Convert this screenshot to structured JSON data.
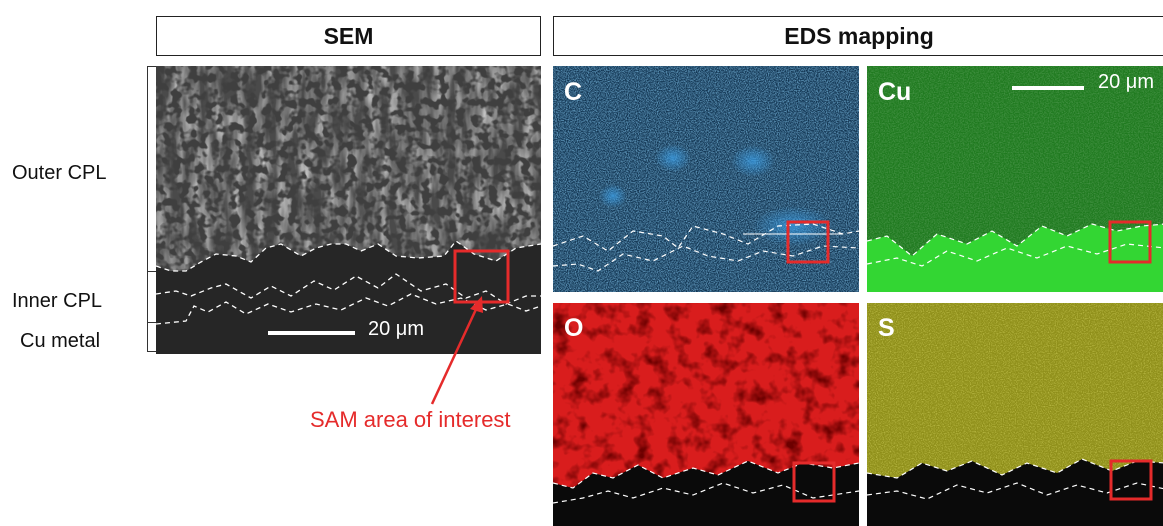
{
  "headers": {
    "sem": "SEM",
    "eds": "EDS mapping"
  },
  "layers": {
    "outer": "Outer CPL",
    "inner": "Inner CPL",
    "metal": "Cu metal"
  },
  "sem_scale": "20 μm",
  "eds_scale": "20 μm",
  "elements": {
    "c": "C",
    "cu": "Cu",
    "o": "O",
    "s": "S"
  },
  "annotation": "SAM area of interest",
  "colors": {
    "carbon": "#1a4d7a",
    "copper": "#1f7a1f",
    "copper_bright": "#33d633",
    "oxygen": "#d91d1d",
    "sulfur": "#8f8f1a",
    "marker": "#e52b2b"
  }
}
